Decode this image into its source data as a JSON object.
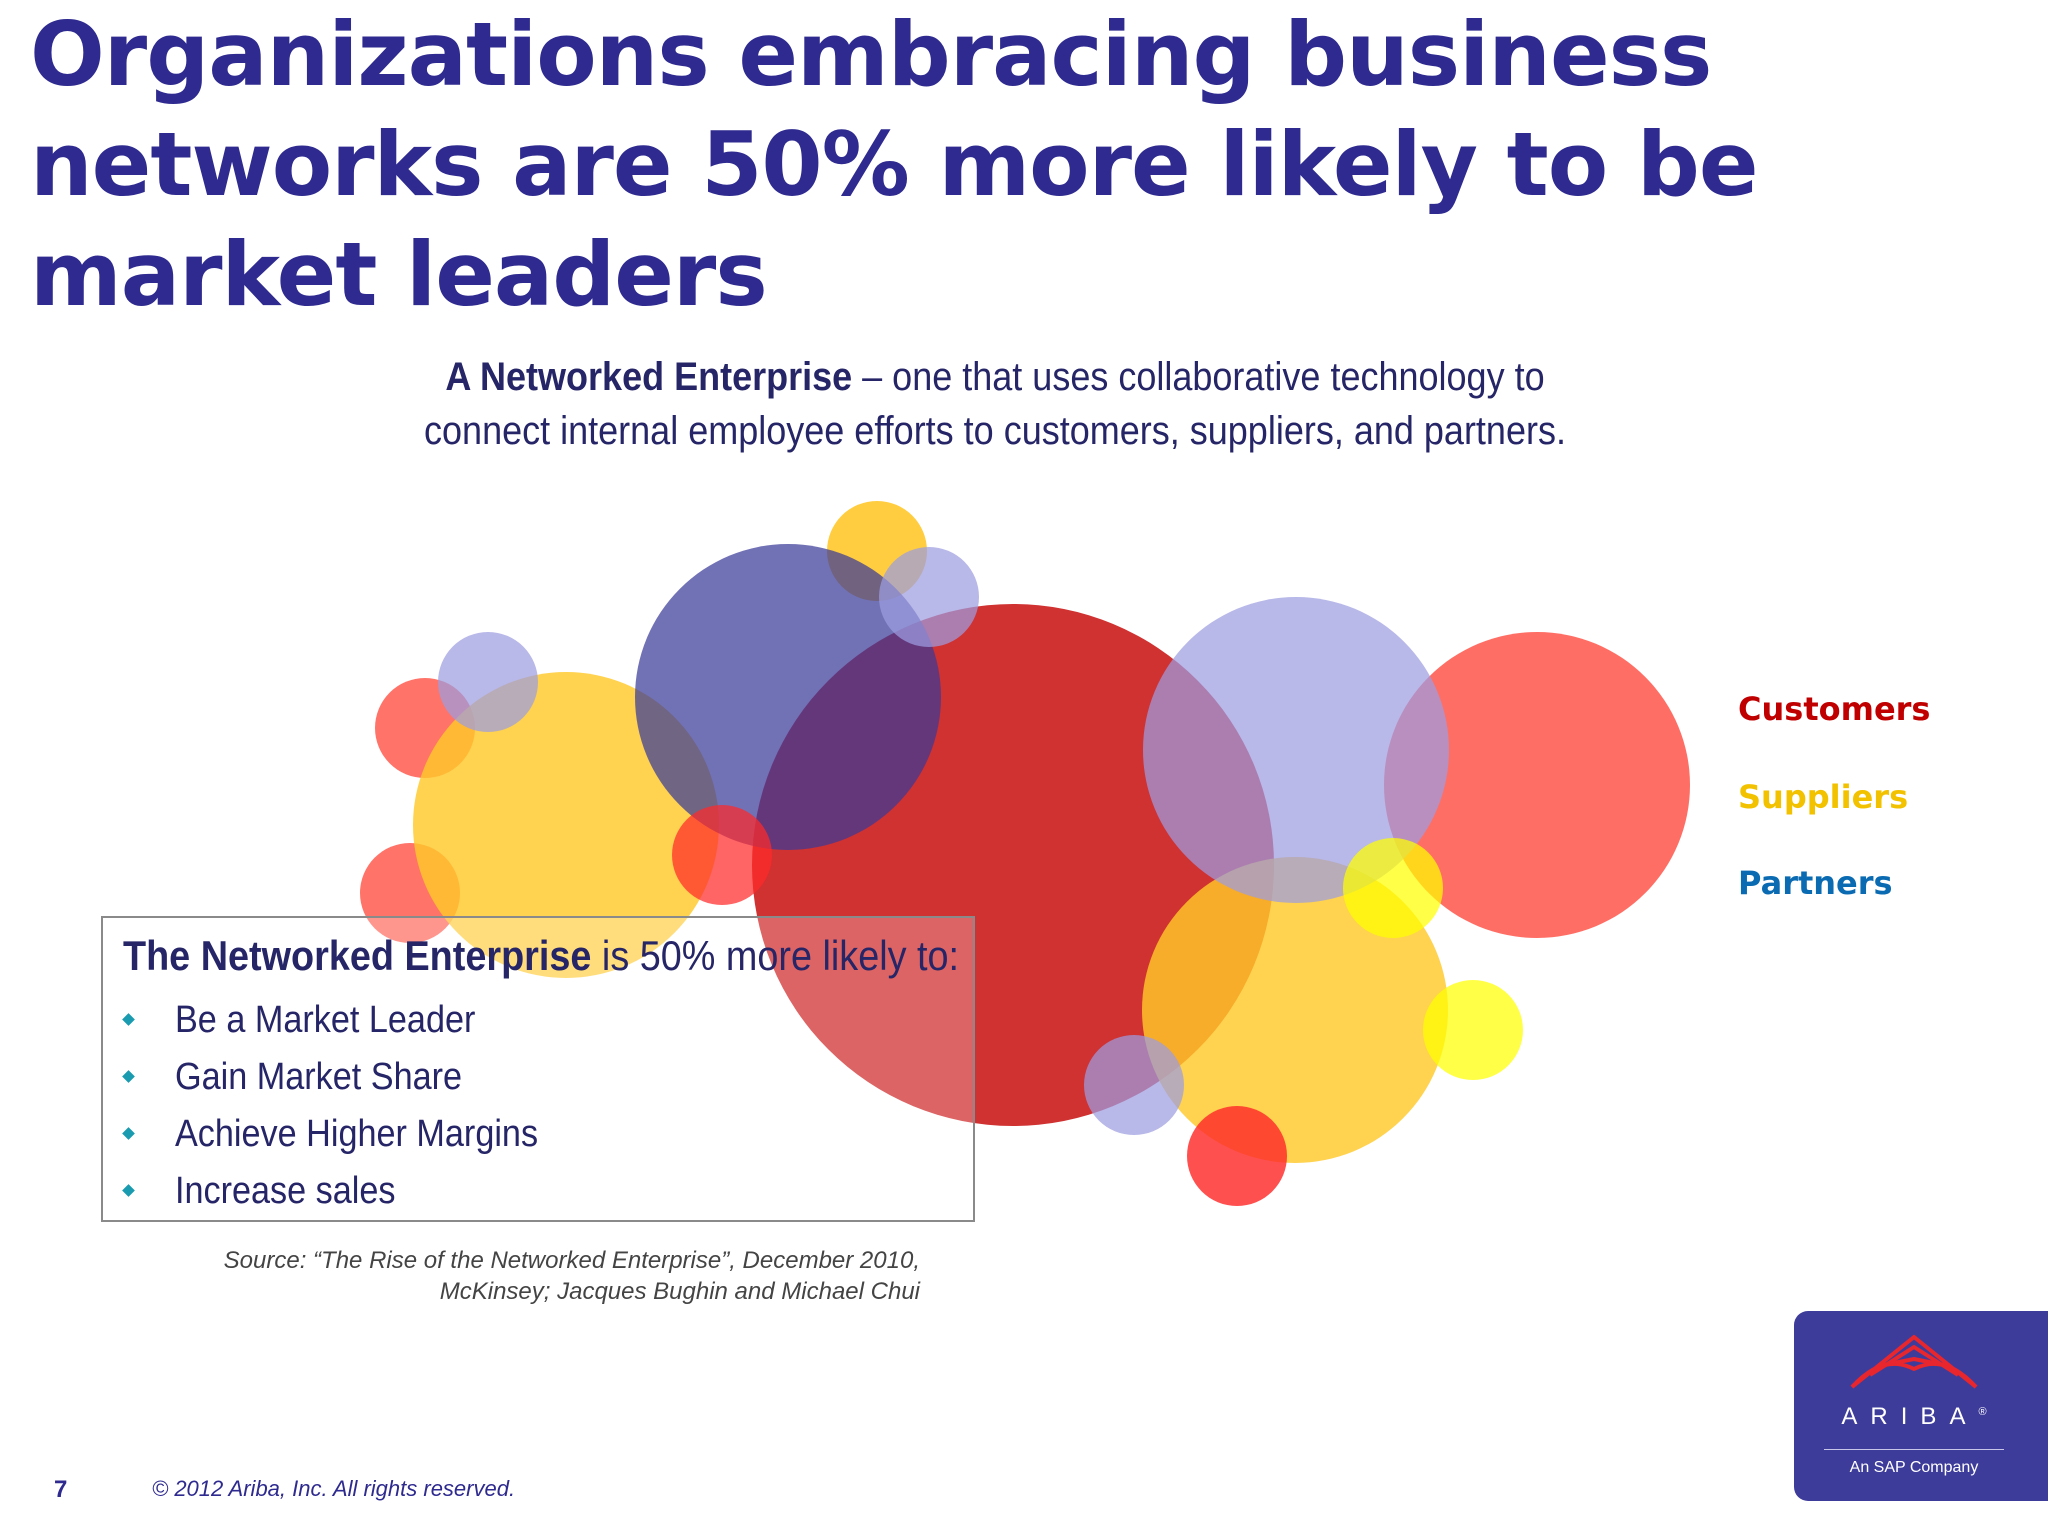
{
  "title": "Organizations embracing business networks are 50% more likely to be market leaders",
  "intro": {
    "term": "A Networked Enterprise",
    "definition": " – one that uses collaborative technology to connect internal employee efforts to customers, suppliers, and partners."
  },
  "legend": [
    {
      "label": "Customers",
      "color": "#c00000"
    },
    {
      "label": "Suppliers",
      "color": "#f2c200"
    },
    {
      "label": "Partners",
      "color": "#0a6bb2"
    }
  ],
  "colors": {
    "title": "#2e2a8f",
    "body_text": "#252567",
    "bullet": "#1b9bb0",
    "red": "#cc1f1f",
    "coral": "#ff5a4e",
    "yellow": "#ffc82a",
    "violet": "#3a3a99",
    "lavender": "#9c9ce0",
    "logo_bg": "#3e3c9a"
  },
  "benefits": {
    "heading_strong": "The Networked Enterprise",
    "heading_rest": " is 50% more likely to:",
    "items": [
      "Be a Market Leader",
      "Gain Market Share",
      "Achieve Higher Margins",
      "Increase sales"
    ]
  },
  "source": {
    "line1": "Source: “The Rise of the Networked Enterprise”, December 2010,",
    "line2": "McKinsey; Jacques Bughin and Michael Chui"
  },
  "footer": {
    "page_number": "7",
    "copyright": "© 2012 Ariba, Inc. All rights reserved."
  },
  "logo": {
    "wordmark": "ARIBA",
    "registered": "®",
    "tagline": "An SAP Company"
  }
}
